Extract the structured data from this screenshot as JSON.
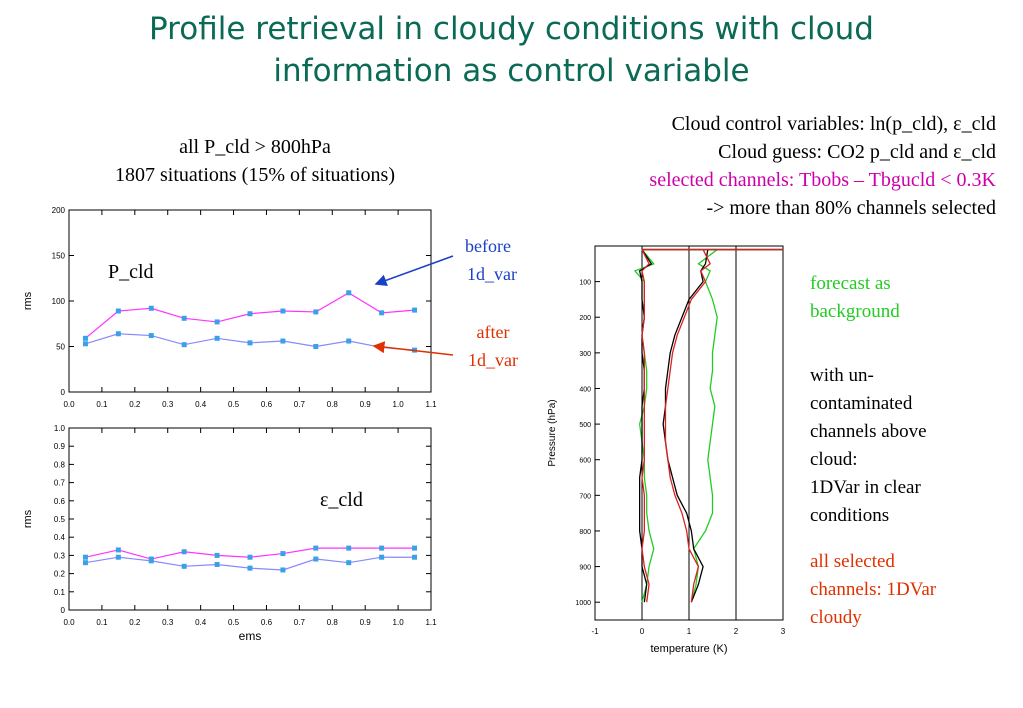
{
  "title": {
    "line1": "Profile retrieval  in cloudy conditions with cloud",
    "line2": "information as control variable"
  },
  "subtitle": {
    "line1": "all P_cld  > 800hPa",
    "line2": "1807 situations (15% of situations)"
  },
  "info": {
    "line1": "Cloud control variables: ln(p_cld), ε_cld",
    "line2": "Cloud guess: CO2 p_cld and ε_cld",
    "line3": "selected channels: Tbobs – Tbgucld < 0.3K",
    "line4": "-> more than 80% channels selected"
  },
  "annotations": {
    "before_1": "before",
    "before_2": "1d_var",
    "after_1": "after",
    "after_2": "1d_var"
  },
  "legend_notes": {
    "green_1": "forecast as",
    "green_2": "background",
    "black_1": "with un-",
    "black_2": "contaminated",
    "black_3": "channels above",
    "black_4": "cloud:",
    "black_5": "1DVar in clear",
    "black_6": "conditions",
    "red_1": "all selected",
    "red_2": "channels: 1DVar",
    "red_3": "cloudy"
  },
  "colors": {
    "title": "#0a6a55",
    "magenta": "#cc00aa",
    "blue_marker": "#3aa0e8",
    "before_text": "#1a3fc8",
    "after_text": "#e03000",
    "green": "#22cc22",
    "red": "#dd2020",
    "black": "#000000"
  },
  "chart_data": [
    {
      "type": "line",
      "panel_label": "P_cld",
      "xlabel": "",
      "ylabel": "rms",
      "xlim": [
        0.0,
        1.1
      ],
      "ylim": [
        0,
        200
      ],
      "xticks": [
        "0.0",
        "0.1",
        "0.2",
        "0.3",
        "0.4",
        "0.5",
        "0.6",
        "0.7",
        "0.8",
        "0.9",
        "1.0",
        "1.1"
      ],
      "yticks": [
        "0",
        "50",
        "100",
        "150",
        "200"
      ],
      "x": [
        0.05,
        0.15,
        0.25,
        0.35,
        0.45,
        0.55,
        0.65,
        0.75,
        0.85,
        0.95,
        1.05
      ],
      "series": [
        {
          "values": [
            59,
            89,
            92,
            81,
            77,
            86,
            89,
            88,
            109,
            87,
            90
          ],
          "color": "#ff33ff"
        },
        {
          "values": [
            53,
            64,
            62,
            52,
            59,
            54,
            56,
            50,
            56,
            49,
            46
          ],
          "color": "#8888ff"
        }
      ]
    },
    {
      "type": "line",
      "panel_label": "ε_cld",
      "xlabel": "ems",
      "ylabel": "rms",
      "xlim": [
        0.0,
        1.1
      ],
      "ylim": [
        0,
        1.0
      ],
      "xticks": [
        "0.0",
        "0.1",
        "0.2",
        "0.3",
        "0.4",
        "0.5",
        "0.6",
        "0.7",
        "0.8",
        "0.9",
        "1.0",
        "1.1"
      ],
      "yticks": [
        "0",
        "0.1",
        "0.2",
        "0.3",
        "0.4",
        "0.5",
        "0.6",
        "0.7",
        "0.8",
        "0.9",
        "1.0"
      ],
      "x": [
        0.05,
        0.15,
        0.25,
        0.35,
        0.45,
        0.55,
        0.65,
        0.75,
        0.85,
        0.95,
        1.05
      ],
      "series": [
        {
          "values": [
            0.29,
            0.33,
            0.28,
            0.32,
            0.3,
            0.29,
            0.31,
            0.34,
            0.34,
            0.34,
            0.34
          ],
          "color": "#ff33ff"
        },
        {
          "values": [
            0.26,
            0.29,
            0.27,
            0.24,
            0.25,
            0.23,
            0.22,
            0.28,
            0.26,
            0.29,
            0.29
          ],
          "color": "#8888ff"
        }
      ]
    },
    {
      "type": "line",
      "xlabel": "temperature (K)",
      "ylabel": "Pressure (hPa)",
      "xlim": [
        -1,
        3
      ],
      "ylim": [
        1050,
        0
      ],
      "xticks": [
        "-1",
        "0",
        "1",
        "2",
        "3"
      ],
      "yticks": [
        "100",
        "200",
        "300",
        "400",
        "500",
        "600",
        "700",
        "800",
        "900",
        "1000"
      ],
      "series": [
        {
          "color": "#22cc22",
          "x_bias": [
            0.0,
            0.25,
            -0.15,
            0.05,
            0.05,
            0.05,
            0.0,
            0.05,
            0.1,
            0.1,
            0.05,
            -0.05,
            0.0,
            0.05,
            0.05,
            0.1,
            0.1,
            0.15,
            0.25,
            0.15,
            0.1,
            0.0
          ],
          "x_rms": [
            1.6,
            1.2,
            1.45,
            1.35,
            1.5,
            1.6,
            1.55,
            1.5,
            1.5,
            1.45,
            1.55,
            1.5,
            1.45,
            1.4,
            1.45,
            1.5,
            1.5,
            1.35,
            1.1,
            1.2,
            1.15,
            1.05
          ],
          "p": [
            10,
            50,
            70,
            100,
            150,
            200,
            250,
            300,
            350,
            400,
            450,
            500,
            550,
            600,
            650,
            700,
            750,
            800,
            850,
            900,
            950,
            1000
          ]
        },
        {
          "color": "#000000",
          "x_bias": [
            0.0,
            0.2,
            -0.05,
            0.0,
            0.0,
            0.05,
            0.0,
            0.0,
            0.05,
            0.05,
            0.0,
            0.0,
            0.0,
            0.0,
            -0.05,
            -0.05,
            -0.05,
            -0.05,
            0.0,
            0.0,
            0.1,
            0.05
          ],
          "x_rms": [
            1.4,
            1.35,
            1.25,
            1.3,
            1.0,
            0.85,
            0.7,
            0.6,
            0.55,
            0.5,
            0.5,
            0.45,
            0.5,
            0.55,
            0.65,
            0.75,
            0.95,
            1.05,
            1.1,
            1.3,
            1.2,
            1.05
          ],
          "p": [
            10,
            50,
            70,
            100,
            150,
            200,
            250,
            300,
            350,
            400,
            450,
            500,
            550,
            600,
            650,
            700,
            750,
            800,
            850,
            900,
            950,
            1000
          ]
        },
        {
          "color": "#dd2020",
          "x_bias": [
            0.0,
            0.15,
            0.0,
            0.05,
            0.05,
            0.05,
            0.0,
            0.05,
            0.05,
            0.05,
            0.05,
            0.05,
            0.05,
            0.05,
            0.0,
            0.05,
            0.05,
            0.05,
            0.0,
            0.05,
            0.15,
            0.1
          ],
          "x_rms": [
            1.3,
            1.45,
            1.25,
            1.35,
            1.05,
            0.9,
            0.75,
            0.65,
            0.6,
            0.55,
            0.5,
            0.5,
            0.5,
            0.55,
            0.6,
            0.7,
            0.85,
            0.95,
            1.0,
            1.2,
            1.1,
            1.05
          ],
          "p": [
            10,
            50,
            70,
            100,
            150,
            200,
            250,
            300,
            350,
            400,
            450,
            500,
            550,
            600,
            650,
            700,
            750,
            800,
            850,
            900,
            950,
            1000
          ]
        }
      ]
    }
  ]
}
